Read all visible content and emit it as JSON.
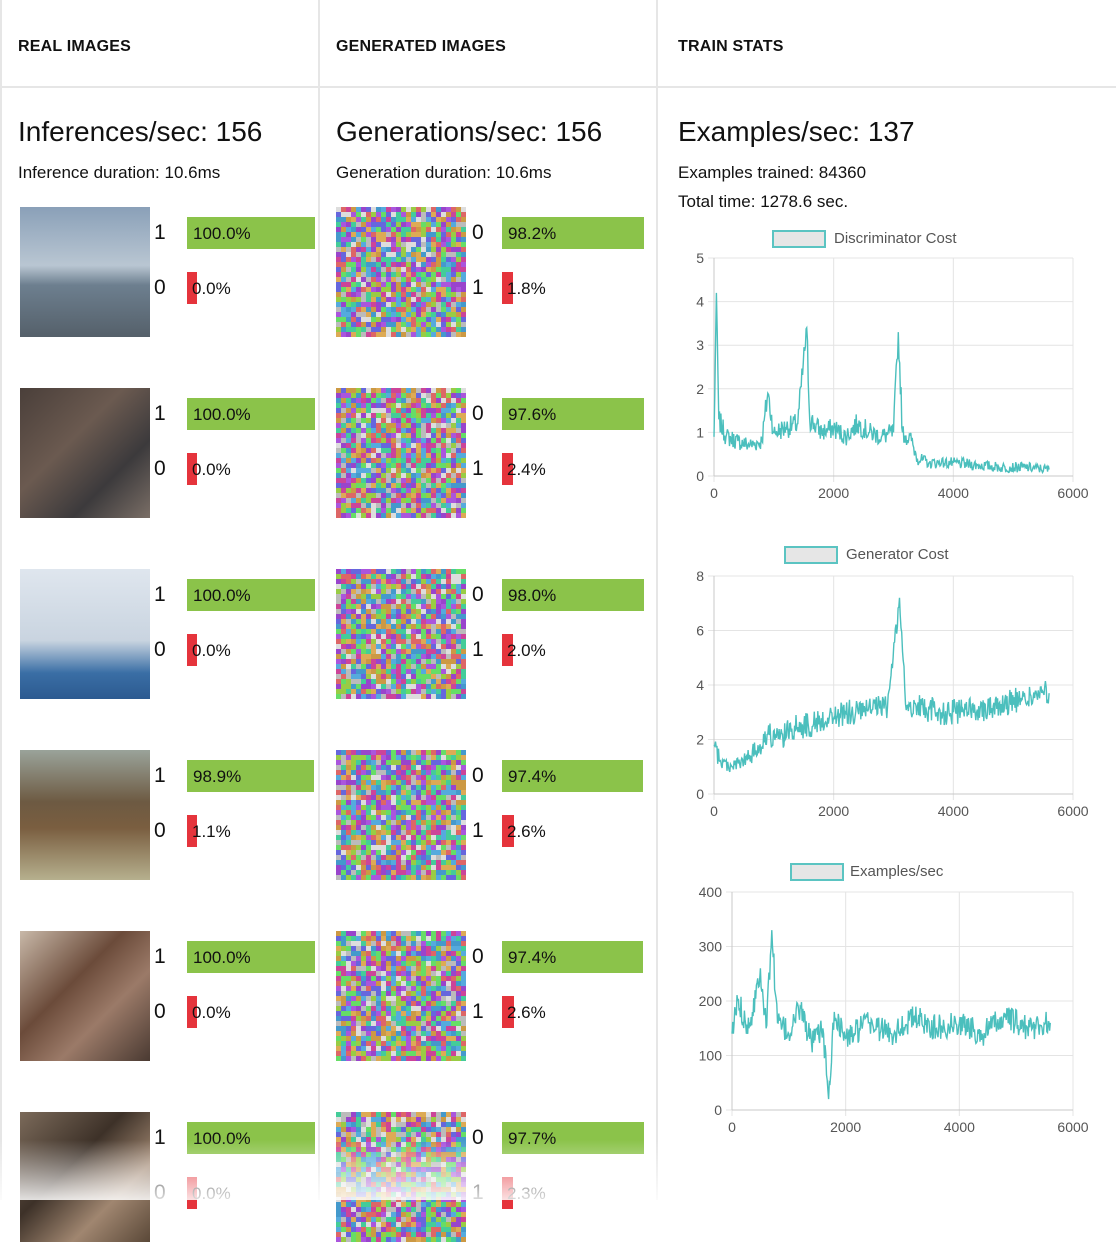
{
  "columns": {
    "real": {
      "header": "REAL IMAGES",
      "rate_label": "Inferences/sec: 156",
      "duration_label": "Inference duration: 10.6ms",
      "rows": [
        {
          "image": "real image 1",
          "top_class": "1",
          "top_pct": "100.0%",
          "top_value": 1.0,
          "bot_class": "0",
          "bot_pct": "0.0%",
          "bot_value": 0.0
        },
        {
          "image": "real image 2",
          "top_class": "1",
          "top_pct": "100.0%",
          "top_value": 1.0,
          "bot_class": "0",
          "bot_pct": "0.0%",
          "bot_value": 0.0
        },
        {
          "image": "real image 3",
          "top_class": "1",
          "top_pct": "100.0%",
          "top_value": 1.0,
          "bot_class": "0",
          "bot_pct": "0.0%",
          "bot_value": 0.0
        },
        {
          "image": "real image 4",
          "top_class": "1",
          "top_pct": "98.9%",
          "top_value": 0.989,
          "bot_class": "0",
          "bot_pct": "1.1%",
          "bot_value": 0.011
        },
        {
          "image": "real image 5",
          "top_class": "1",
          "top_pct": "100.0%",
          "top_value": 1.0,
          "bot_class": "0",
          "bot_pct": "0.0%",
          "bot_value": 0.0
        },
        {
          "image": "real image 6",
          "top_class": "1",
          "top_pct": "100.0%",
          "top_value": 1.0,
          "bot_class": "0",
          "bot_pct": "0.0%",
          "bot_value": 0.0
        }
      ]
    },
    "generated": {
      "header": "GENERATED IMAGES",
      "rate_label": "Generations/sec: 156",
      "duration_label": "Generation duration: 10.6ms",
      "rows": [
        {
          "image": "noise image 1",
          "top_class": "0",
          "top_pct": "98.2%",
          "top_value": 0.982,
          "bot_class": "1",
          "bot_pct": "1.8%",
          "bot_value": 0.018
        },
        {
          "image": "noise image 2",
          "top_class": "0",
          "top_pct": "97.6%",
          "top_value": 0.976,
          "bot_class": "1",
          "bot_pct": "2.4%",
          "bot_value": 0.024
        },
        {
          "image": "noise image 3",
          "top_class": "0",
          "top_pct": "98.0%",
          "top_value": 0.98,
          "bot_class": "1",
          "bot_pct": "2.0%",
          "bot_value": 0.02
        },
        {
          "image": "noise image 4",
          "top_class": "0",
          "top_pct": "97.4%",
          "top_value": 0.974,
          "bot_class": "1",
          "bot_pct": "2.6%",
          "bot_value": 0.026
        },
        {
          "image": "noise image 5",
          "top_class": "0",
          "top_pct": "97.4%",
          "top_value": 0.974,
          "bot_class": "1",
          "bot_pct": "2.6%",
          "bot_value": 0.026
        },
        {
          "image": "noise image 6",
          "top_class": "0",
          "top_pct": "97.7%",
          "top_value": 0.977,
          "bot_class": "1",
          "bot_pct": "2.3%",
          "bot_value": 0.023
        }
      ]
    },
    "train": {
      "header": "TRAIN STATS",
      "rate_label": "Examples/sec: 137",
      "examples_label": "Examples trained: 84360",
      "time_label": "Total time: 1278.6 sec."
    }
  },
  "colors": {
    "positive_bar": "#8bc34a",
    "negative_bar": "#e5343c",
    "series_line": "#4bbfbd"
  },
  "chart_data": [
    {
      "type": "line",
      "legend": [
        "Discriminator Cost"
      ],
      "x_ticks": [
        "0",
        "2000",
        "4000",
        "6000"
      ],
      "y_ticks": [
        "0",
        "1",
        "2",
        "3",
        "4",
        "5"
      ],
      "xlim": [
        0,
        6000
      ],
      "ylim": [
        0,
        5
      ],
      "grid": true,
      "legend_position": "top",
      "series": [
        {
          "name": "Discriminator Cost",
          "x": [
            0,
            40,
            80,
            200,
            400,
            600,
            800,
            900,
            1000,
            1200,
            1400,
            1550,
            1600,
            1800,
            2000,
            2200,
            2400,
            2600,
            2800,
            3000,
            3080,
            3150,
            3300,
            3400,
            3600,
            3800,
            4000,
            4400,
            4800,
            5200,
            5600
          ],
          "y": [
            0.9,
            4.2,
            1.3,
            0.9,
            0.8,
            0.7,
            0.8,
            1.9,
            1.0,
            1.1,
            1.2,
            3.4,
            1.3,
            1.0,
            1.1,
            0.9,
            1.2,
            1.0,
            0.9,
            1.0,
            3.3,
            1.0,
            0.8,
            0.4,
            0.3,
            0.3,
            0.3,
            0.25,
            0.2,
            0.2,
            0.15
          ]
        }
      ]
    },
    {
      "type": "line",
      "legend": [
        "Generator Cost"
      ],
      "x_ticks": [
        "0",
        "2000",
        "4000",
        "6000"
      ],
      "y_ticks": [
        "0",
        "2",
        "4",
        "6",
        "8"
      ],
      "xlim": [
        0,
        6000
      ],
      "ylim": [
        0,
        8
      ],
      "grid": true,
      "legend_position": "top",
      "series": [
        {
          "name": "Generator Cost",
          "x": [
            0,
            100,
            300,
            500,
            700,
            900,
            1100,
            1300,
            1500,
            1700,
            1900,
            2100,
            2300,
            2500,
            2700,
            2900,
            3100,
            3200,
            3400,
            3600,
            3800,
            4000,
            4400,
            4800,
            5200,
            5600
          ],
          "y": [
            1.8,
            1.2,
            1.0,
            1.2,
            1.6,
            2.2,
            2.0,
            2.4,
            2.5,
            2.6,
            2.8,
            2.9,
            3.0,
            3.0,
            3.1,
            3.2,
            7.2,
            3.3,
            3.2,
            3.1,
            3.0,
            3.0,
            3.1,
            3.3,
            3.5,
            3.7
          ]
        }
      ]
    },
    {
      "type": "line",
      "legend": [
        "Examples/sec"
      ],
      "x_ticks": [
        "0",
        "2000",
        "4000",
        "6000"
      ],
      "y_ticks": [
        "0",
        "100",
        "200",
        "300",
        "400"
      ],
      "xlim": [
        0,
        6000
      ],
      "ylim": [
        0,
        400
      ],
      "grid": true,
      "legend_position": "top",
      "series": [
        {
          "name": "Examples/sec",
          "x": [
            0,
            100,
            300,
            500,
            600,
            700,
            800,
            1000,
            1200,
            1400,
            1600,
            1700,
            1800,
            2000,
            2400,
            2800,
            3200,
            3600,
            4000,
            4400,
            4800,
            5200,
            5600
          ],
          "y": [
            140,
            200,
            150,
            260,
            150,
            330,
            160,
            140,
            190,
            120,
            150,
            20,
            180,
            130,
            160,
            140,
            170,
            150,
            160,
            140,
            170,
            150,
            160
          ]
        }
      ]
    }
  ]
}
